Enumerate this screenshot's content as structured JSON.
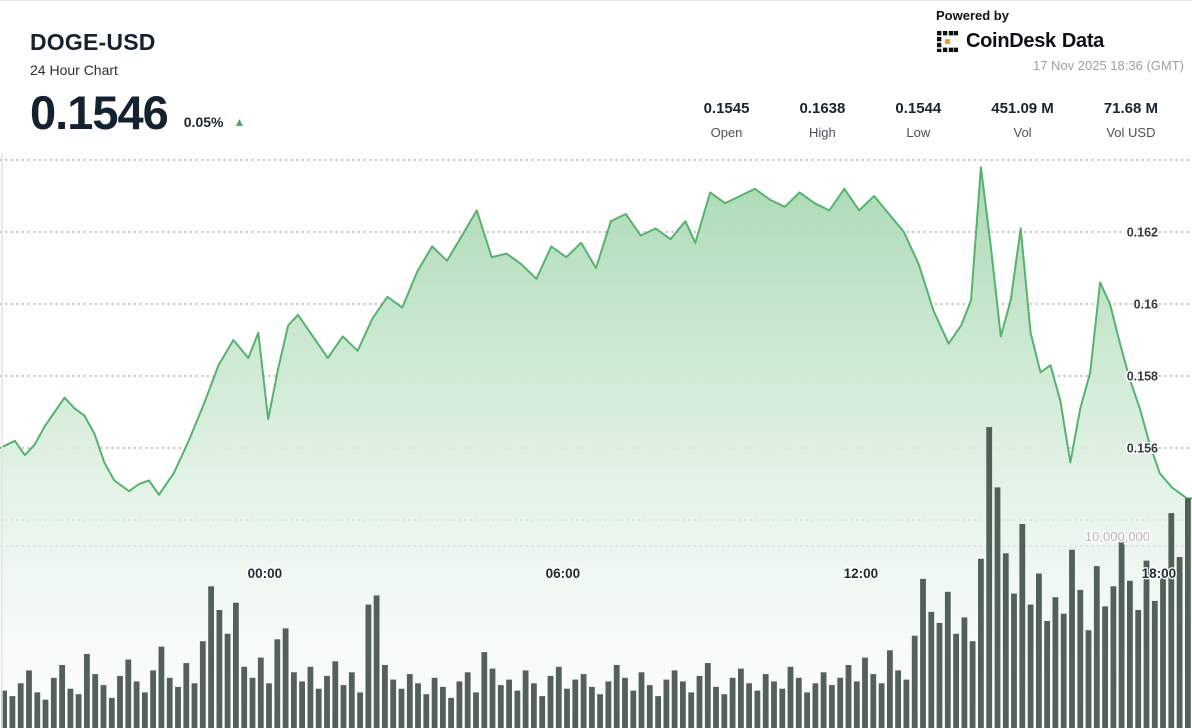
{
  "header": {
    "symbol": "DOGE-USD",
    "subtitle": "24 Hour Chart",
    "price": "0.1546",
    "change": "0.05%",
    "change_direction": "up"
  },
  "powered_by": {
    "label": "Powered by",
    "brand": "CoinDesk",
    "brand_suffix": "Data",
    "timestamp": "17 Nov 2025 18:36 (GMT)"
  },
  "stats": [
    {
      "value": "0.1545",
      "label": "Open"
    },
    {
      "value": "0.1638",
      "label": "High"
    },
    {
      "value": "0.1544",
      "label": "Low"
    },
    {
      "value": "451.09 M",
      "label": "Vol"
    },
    {
      "value": "71.68 M",
      "label": "Vol USD"
    }
  ],
  "chart_data": {
    "type": "area+bar",
    "title": "DOGE-USD 24 Hour Chart",
    "x_axis": {
      "span_hours": 24,
      "end_time": "17 Nov 2025 18:36 (GMT)",
      "ticks": [
        {
          "t": 5.333,
          "label": "00:00"
        },
        {
          "t": 11.333,
          "label": "06:00"
        },
        {
          "t": 17.333,
          "label": "12:00"
        },
        {
          "t": 23.333,
          "label": "18:00"
        }
      ]
    },
    "y_axis_price": {
      "side": "right",
      "gridlines": [
        {
          "value": 0.164,
          "label": ""
        },
        {
          "value": 0.162,
          "label": "0.162"
        },
        {
          "value": 0.16,
          "label": "0.16"
        },
        {
          "value": 0.158,
          "label": "0.158"
        },
        {
          "value": 0.156,
          "label": "0.156"
        },
        {
          "value": 0.154,
          "label": ""
        }
      ]
    },
    "y_axis_volume": {
      "gridlines": [
        {
          "value": 10000000,
          "label": "10,000,000"
        }
      ]
    },
    "price_series": {
      "name": "DOGE-USD price",
      "points": [
        [
          0,
          0.156
        ],
        [
          0.3,
          0.1562
        ],
        [
          0.5,
          0.1558
        ],
        [
          0.7,
          0.1561
        ],
        [
          0.9,
          0.1566
        ],
        [
          1.1,
          0.157
        ],
        [
          1.3,
          0.1574
        ],
        [
          1.5,
          0.1571
        ],
        [
          1.7,
          0.1569
        ],
        [
          1.9,
          0.1564
        ],
        [
          2.1,
          0.1556
        ],
        [
          2.3,
          0.1551
        ],
        [
          2.6,
          0.1548
        ],
        [
          2.8,
          0.155
        ],
        [
          3.0,
          0.1551
        ],
        [
          3.2,
          0.1547
        ],
        [
          3.5,
          0.1553
        ],
        [
          3.8,
          0.1562
        ],
        [
          4.1,
          0.1572
        ],
        [
          4.4,
          0.1583
        ],
        [
          4.7,
          0.159
        ],
        [
          5.0,
          0.1585
        ],
        [
          5.2,
          0.1592
        ],
        [
          5.4,
          0.1568
        ],
        [
          5.6,
          0.1582
        ],
        [
          5.8,
          0.1594
        ],
        [
          6.0,
          0.1597
        ],
        [
          6.3,
          0.1591
        ],
        [
          6.6,
          0.1585
        ],
        [
          6.9,
          0.1591
        ],
        [
          7.2,
          0.1587
        ],
        [
          7.5,
          0.1596
        ],
        [
          7.8,
          0.1602
        ],
        [
          8.1,
          0.1599
        ],
        [
          8.4,
          0.1609
        ],
        [
          8.7,
          0.1616
        ],
        [
          9.0,
          0.1612
        ],
        [
          9.3,
          0.1619
        ],
        [
          9.6,
          0.1626
        ],
        [
          9.9,
          0.1613
        ],
        [
          10.2,
          0.1614
        ],
        [
          10.5,
          0.1611
        ],
        [
          10.8,
          0.1607
        ],
        [
          11.1,
          0.1616
        ],
        [
          11.4,
          0.1613
        ],
        [
          11.7,
          0.1617
        ],
        [
          12.0,
          0.161
        ],
        [
          12.3,
          0.1623
        ],
        [
          12.6,
          0.1625
        ],
        [
          12.9,
          0.1619
        ],
        [
          13.2,
          0.1621
        ],
        [
          13.5,
          0.1618
        ],
        [
          13.8,
          0.1623
        ],
        [
          14.0,
          0.1617
        ],
        [
          14.3,
          0.1631
        ],
        [
          14.6,
          0.1628
        ],
        [
          14.9,
          0.163
        ],
        [
          15.2,
          0.1632
        ],
        [
          15.5,
          0.1629
        ],
        [
          15.8,
          0.1627
        ],
        [
          16.1,
          0.1631
        ],
        [
          16.4,
          0.1628
        ],
        [
          16.7,
          0.1626
        ],
        [
          17.0,
          0.1632
        ],
        [
          17.3,
          0.1626
        ],
        [
          17.6,
          0.163
        ],
        [
          17.9,
          0.1625
        ],
        [
          18.2,
          0.162
        ],
        [
          18.5,
          0.1611
        ],
        [
          18.8,
          0.1598
        ],
        [
          19.1,
          0.1589
        ],
        [
          19.35,
          0.1594
        ],
        [
          19.55,
          0.1601
        ],
        [
          19.75,
          0.1638
        ],
        [
          19.95,
          0.1616
        ],
        [
          20.15,
          0.1591
        ],
        [
          20.35,
          0.1601
        ],
        [
          20.55,
          0.1621
        ],
        [
          20.75,
          0.1592
        ],
        [
          20.95,
          0.1581
        ],
        [
          21.15,
          0.1583
        ],
        [
          21.35,
          0.1573
        ],
        [
          21.55,
          0.1556
        ],
        [
          21.75,
          0.1571
        ],
        [
          21.95,
          0.1581
        ],
        [
          22.15,
          0.1606
        ],
        [
          22.35,
          0.16
        ],
        [
          22.55,
          0.1589
        ],
        [
          22.75,
          0.1579
        ],
        [
          22.95,
          0.1571
        ],
        [
          23.15,
          0.1561
        ],
        [
          23.35,
          0.1553
        ],
        [
          23.6,
          0.1549
        ],
        [
          23.9,
          0.1546
        ]
      ]
    },
    "volume_series": {
      "name": "Volume",
      "interval_minutes": 10,
      "unit": "millions",
      "values": [
        2.1,
        1.8,
        2.5,
        3.2,
        2.0,
        1.6,
        2.8,
        3.5,
        2.2,
        1.9,
        4.1,
        3.0,
        2.4,
        1.7,
        2.9,
        3.8,
        2.6,
        2.0,
        3.2,
        4.5,
        2.8,
        2.3,
        3.6,
        2.5,
        4.8,
        7.8,
        6.5,
        5.2,
        6.9,
        3.4,
        2.8,
        3.9,
        2.5,
        4.9,
        5.5,
        3.1,
        2.6,
        3.4,
        2.2,
        2.9,
        3.7,
        2.4,
        3.1,
        2.0,
        6.8,
        7.3,
        3.5,
        2.7,
        2.2,
        3.0,
        2.5,
        1.9,
        2.8,
        2.3,
        1.7,
        2.6,
        3.1,
        2.0,
        4.2,
        3.3,
        2.4,
        2.7,
        2.1,
        3.2,
        2.5,
        1.8,
        2.9,
        3.4,
        2.2,
        2.7,
        3.0,
        2.3,
        1.9,
        2.6,
        3.5,
        2.8,
        2.1,
        3.1,
        2.4,
        1.8,
        2.7,
        3.2,
        2.6,
        2.0,
        2.9,
        3.6,
        2.3,
        1.9,
        2.8,
        3.3,
        2.5,
        2.1,
        3.0,
        2.6,
        2.2,
        3.4,
        2.8,
        2.0,
        2.5,
        3.1,
        2.4,
        2.8,
        3.5,
        2.6,
        3.9,
        3.0,
        2.5,
        4.3,
        3.2,
        2.7,
        5.1,
        8.2,
        6.4,
        5.8,
        7.5,
        5.2,
        6.1,
        4.8,
        9.3,
        16.5,
        13.2,
        9.6,
        7.4,
        11.2,
        6.8,
        8.5,
        5.9,
        7.2,
        6.3,
        9.8,
        7.6,
        5.4,
        8.9,
        6.7,
        7.8,
        10.4,
        8.1,
        6.5,
        9.2,
        7.0,
        8.6,
        11.8,
        9.4,
        12.6
      ]
    },
    "colors": {
      "line": "#55b36d",
      "fill_top": "#a3d6ae",
      "fill_mid": "#dcefe0",
      "fill_bottom": "#fafdfb",
      "volume_bar": "#46554b",
      "grid": "#b3b3b3",
      "price_label": "#33393f",
      "volume_label": "#b5b5b5",
      "time_label": "#1f2a33",
      "up_green": "#43b065"
    }
  }
}
